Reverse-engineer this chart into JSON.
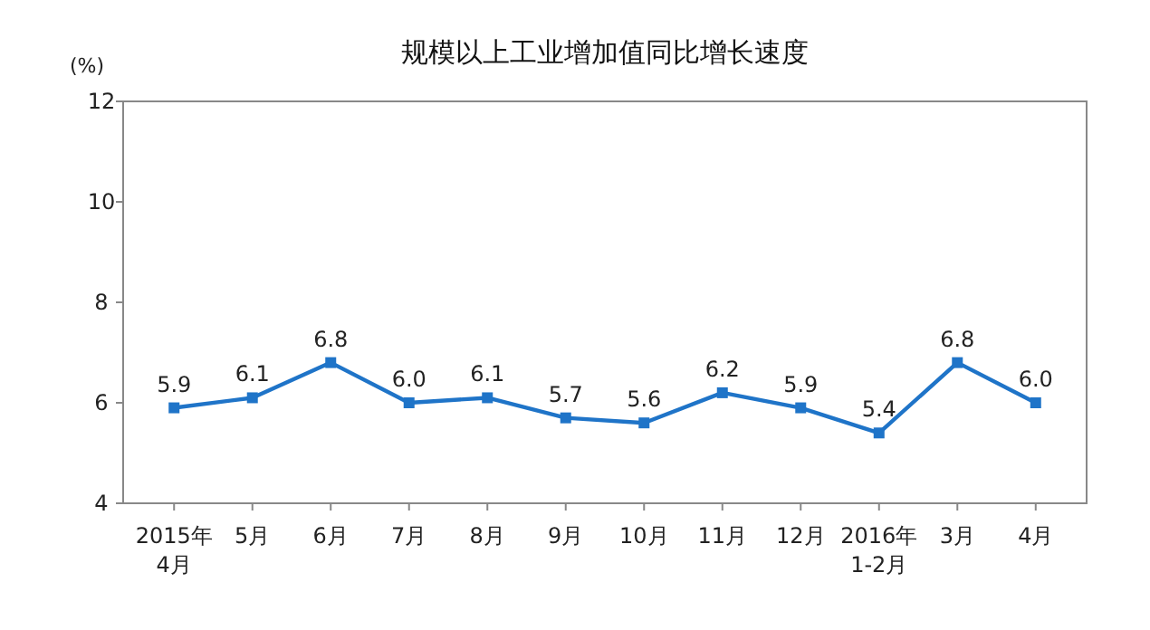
{
  "chart_data": {
    "type": "line",
    "title": "规模以上工业增加值同比增长速度",
    "ylabel": "(%)",
    "categories": [
      "2015年\n4月",
      "5月",
      "6月",
      "7月",
      "8月",
      "9月",
      "10月",
      "11月",
      "12月",
      "2016年\n1-2月",
      "3月",
      "4月"
    ],
    "series": [
      {
        "color": "#1f74c8",
        "values": [
          5.9,
          6.1,
          6.8,
          6.0,
          6.1,
          5.7,
          5.6,
          6.2,
          5.9,
          5.4,
          6.8,
          6.0
        ],
        "value_labels": [
          "5.9",
          "6.1",
          "6.8",
          "6.0",
          "6.1",
          "5.7",
          "5.6",
          "6.2",
          "5.9",
          "5.4",
          "6.8",
          "6.0"
        ]
      }
    ],
    "ylim": [
      4,
      12
    ],
    "yticks": [
      4,
      6,
      8,
      10,
      12
    ],
    "marker": "square",
    "line_style": "solid"
  }
}
